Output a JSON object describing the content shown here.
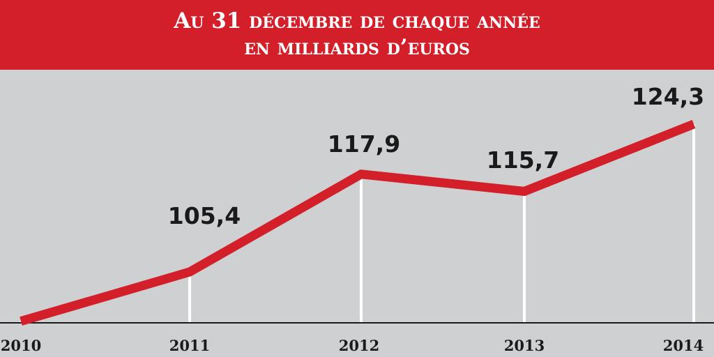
{
  "header": {
    "line1": "Au 31 décembre de chaque année",
    "line2": "en milliards d’euros"
  },
  "colors": {
    "header_bg": "#d21f2a",
    "line": "#d21f2a",
    "background": "#cfd0d2",
    "axis": "#1a1a1a"
  },
  "chart_data": {
    "type": "line",
    "title": "Au 31 décembre de chaque année en milliards d’euros",
    "categories": [
      "2010",
      "2011",
      "2012",
      "2013",
      "2014"
    ],
    "series": [
      {
        "values": [
          99.1,
          105.4,
          117.9,
          115.7,
          124.3
        ]
      }
    ],
    "value_labels": [
      "",
      "105,4",
      "117,9",
      "115,7",
      "124,3"
    ],
    "grid": false
  }
}
